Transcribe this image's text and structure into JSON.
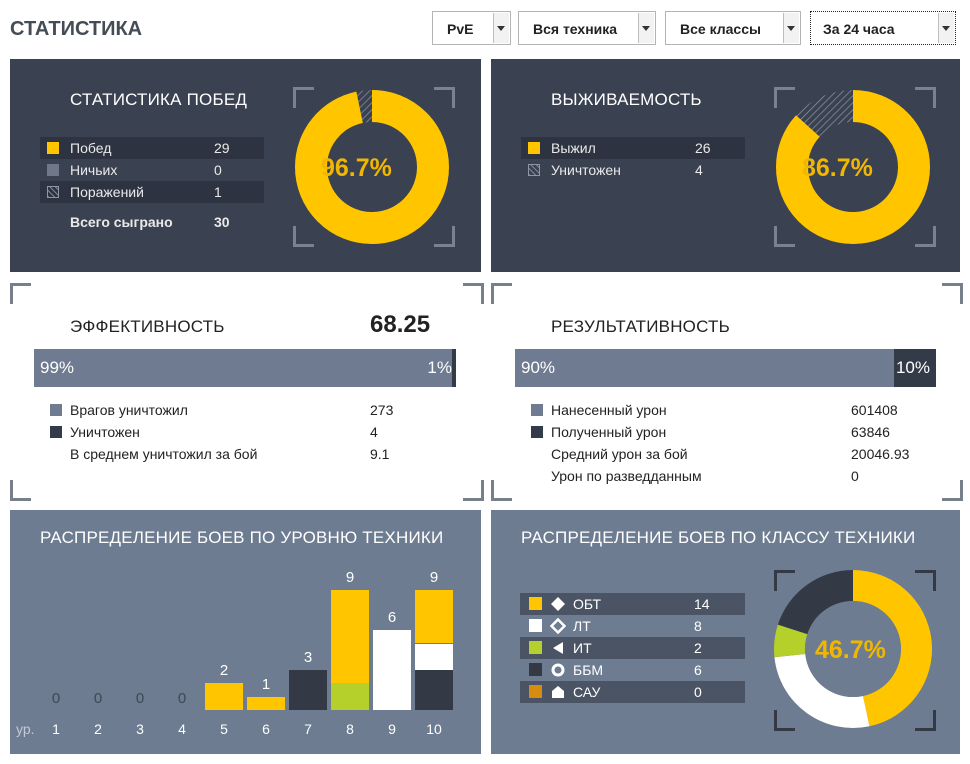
{
  "header": {
    "title": "СТАТИСТИКА"
  },
  "filters": {
    "mode": "PvE",
    "vehicles": "Вся техника",
    "classes": "Все классы",
    "period": "За 24 часа"
  },
  "colors": {
    "accent": "#ffc600",
    "dark_panel": "#3a4150",
    "slate_panel": "#6d7c91",
    "green": "#b5cf2b",
    "orange": "#d68c0e"
  },
  "wins": {
    "title": "СТАТИСТИКА ПОБЕД",
    "rows": [
      {
        "label": "Побед",
        "value": "29"
      },
      {
        "label": "Ничьих",
        "value": "0"
      },
      {
        "label": "Поражений",
        "value": "1"
      }
    ],
    "total_label": "Всего сыграно",
    "total_value": "30",
    "percent": "96.7%",
    "percent_value": 96.7
  },
  "survival": {
    "title": "ВЫЖИВАЕМОСТЬ",
    "rows": [
      {
        "label": "Выжил",
        "value": "26"
      },
      {
        "label": "Уничтожен",
        "value": "4"
      }
    ],
    "percent": "86.7%",
    "percent_value": 86.7
  },
  "efficiency": {
    "title": "ЭФФЕКТИВНОСТЬ",
    "score": "68.25",
    "bar_left": "99%",
    "bar_right": "1%",
    "bar_left_value": 99,
    "rows": [
      {
        "label": "Врагов уничтожил",
        "value": "273"
      },
      {
        "label": "Уничтожен",
        "value": "4"
      },
      {
        "label": "В среднем уничтожил за бой",
        "value": "9.1"
      }
    ]
  },
  "performance": {
    "title": "РЕЗУЛЬТАТИВНОСТЬ",
    "bar_left": "90%",
    "bar_right": "10%",
    "bar_left_value": 90,
    "rows": [
      {
        "label": "Нанесенный урон",
        "value": "601408"
      },
      {
        "label": "Полученный урон",
        "value": "63846"
      },
      {
        "label": "Средний урон за бой",
        "value": "20046.93"
      },
      {
        "label": "Урон по разведданным",
        "value": "0"
      }
    ]
  },
  "tier": {
    "title": "РАСПРЕДЕЛЕНИЕ БОЕВ ПО УРОВНЮ ТЕХНИКИ",
    "axis_label": "ур."
  },
  "chart_data": [
    {
      "type": "bar",
      "title": "РАСПРЕДЕЛЕНИЕ БОЕВ ПО УРОВНЮ ТЕХНИКИ",
      "xlabel": "ур.",
      "categories": [
        "1",
        "2",
        "3",
        "4",
        "5",
        "6",
        "7",
        "8",
        "9",
        "10"
      ],
      "totals": [
        0,
        0,
        0,
        0,
        2,
        1,
        3,
        9,
        6,
        9
      ],
      "series": [
        {
          "name": "ОБТ",
          "color": "#ffc600",
          "values": [
            0,
            0,
            0,
            0,
            2,
            1,
            0,
            7,
            0,
            4
          ]
        },
        {
          "name": "ЛТ",
          "color": "#ffffff",
          "values": [
            0,
            0,
            0,
            0,
            0,
            0,
            0,
            0,
            6,
            2
          ]
        },
        {
          "name": "ИТ",
          "color": "#b5cf2b",
          "values": [
            0,
            0,
            0,
            0,
            0,
            0,
            0,
            2,
            0,
            0
          ]
        },
        {
          "name": "ББМ",
          "color": "#333a46",
          "values": [
            0,
            0,
            0,
            0,
            0,
            0,
            3,
            0,
            0,
            3
          ]
        },
        {
          "name": "САУ",
          "color": "#d68c0e",
          "values": [
            0,
            0,
            0,
            0,
            0,
            0,
            0,
            0,
            0,
            0
          ]
        }
      ],
      "ylim": [
        0,
        9
      ]
    },
    {
      "type": "pie",
      "title": "РАСПРЕДЕЛЕНИЕ БОЕВ ПО КЛАССУ ТЕХНИКИ",
      "labels": [
        "ОБТ",
        "ЛТ",
        "ИТ",
        "ББМ",
        "САУ"
      ],
      "values": [
        14,
        8,
        2,
        6,
        0
      ],
      "center_label": "46.7%"
    }
  ],
  "classes": {
    "title": "РАСПРЕДЕЛЕНИЕ БОЕВ ПО КЛАССУ ТЕХНИКИ",
    "percent": "46.7%",
    "rows": [
      {
        "label": "ОБТ",
        "value": "14",
        "color": "#ffc600",
        "icon": "diamond-icon"
      },
      {
        "label": "ЛТ",
        "value": "8",
        "color": "#ffffff",
        "icon": "diamond-outline-icon"
      },
      {
        "label": "ИТ",
        "value": "2",
        "color": "#b5cf2b",
        "icon": "triangle-left-icon"
      },
      {
        "label": "ББМ",
        "value": "6",
        "color": "#333a46",
        "icon": "ring-icon"
      },
      {
        "label": "САУ",
        "value": "0",
        "color": "#d68c0e",
        "icon": "house-icon"
      }
    ]
  }
}
